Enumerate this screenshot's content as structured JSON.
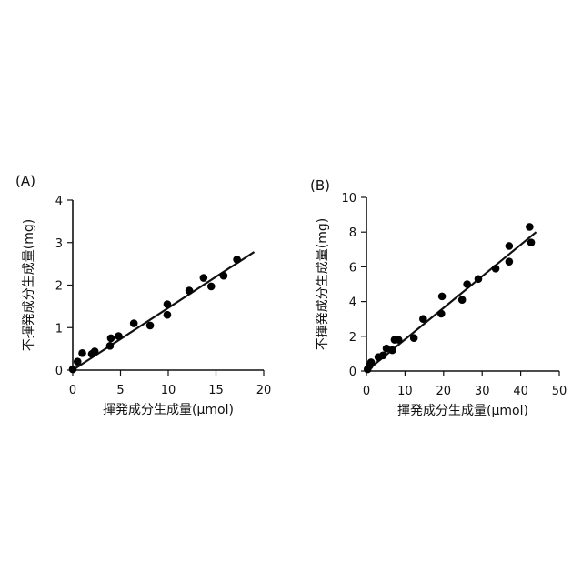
{
  "chart_data": [
    {
      "panel_label": "(A)",
      "type": "scatter",
      "xlabel": "揮発成分生成量(μmol)",
      "ylabel": "不揮発成分生成量(mg)",
      "xlim": [
        0,
        20
      ],
      "ylim": [
        0,
        4
      ],
      "xticks": [
        "0",
        "5",
        "10",
        "15",
        "20"
      ],
      "yticks": [
        "0",
        "1",
        "2",
        "3",
        "4"
      ],
      "grid": false,
      "legend": "none",
      "points": {
        "x": [
          0,
          0.5,
          1.0,
          2.0,
          2.3,
          3.9,
          4.0,
          4.8,
          6.4,
          8.1,
          9.9,
          9.9,
          12.2,
          13.7,
          14.5,
          15.8,
          17.2
        ],
        "y": [
          0.02,
          0.2,
          0.4,
          0.38,
          0.44,
          0.57,
          0.75,
          0.8,
          1.1,
          1.05,
          1.3,
          1.55,
          1.87,
          2.17,
          1.97,
          2.22,
          2.6
        ]
      },
      "fit_line": {
        "x": [
          0,
          19
        ],
        "y": [
          0.0,
          2.78
        ]
      }
    },
    {
      "panel_label": "(B)",
      "type": "scatter",
      "xlabel": "揮発成分生成量(μmol)",
      "ylabel": "不揮発成分生成量(mg)",
      "xlim": [
        0,
        50
      ],
      "ylim": [
        0,
        10
      ],
      "xticks": [
        "0",
        "10",
        "20",
        "30",
        "40",
        "50"
      ],
      "yticks": [
        "0",
        "2",
        "4",
        "6",
        "8",
        "10"
      ],
      "grid": false,
      "legend": "none",
      "points": {
        "x": [
          0.3,
          0.8,
          1.2,
          3.1,
          4.3,
          5.2,
          6.7,
          7.3,
          8.3,
          12.3,
          14.7,
          19.4,
          19.6,
          24.8,
          26.1,
          29.0,
          33.5,
          37.0,
          37.0,
          42.3,
          42.7
        ],
        "y": [
          0.1,
          0.3,
          0.5,
          0.8,
          0.9,
          1.3,
          1.2,
          1.8,
          1.8,
          1.9,
          3.0,
          3.3,
          4.3,
          4.1,
          5.0,
          5.3,
          5.9,
          6.3,
          7.2,
          8.3,
          7.4
        ]
      },
      "fit_line": {
        "x": [
          0,
          44
        ],
        "y": [
          0.0,
          8.0
        ]
      }
    }
  ]
}
